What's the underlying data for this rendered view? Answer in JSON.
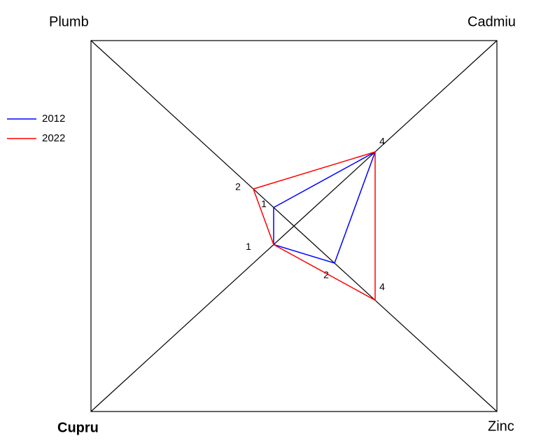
{
  "chart_data": {
    "type": "radar",
    "axes": [
      "Plumb",
      "Cadmiu",
      "Zinc",
      "Cupru"
    ],
    "rlim": [
      0,
      10
    ],
    "series": [
      {
        "name": "2012",
        "color": "#0000ff",
        "values": [
          1,
          4,
          2,
          1
        ]
      },
      {
        "name": "2022",
        "color": "#ff0000",
        "values": [
          2,
          4,
          4,
          1
        ]
      }
    ]
  }
}
